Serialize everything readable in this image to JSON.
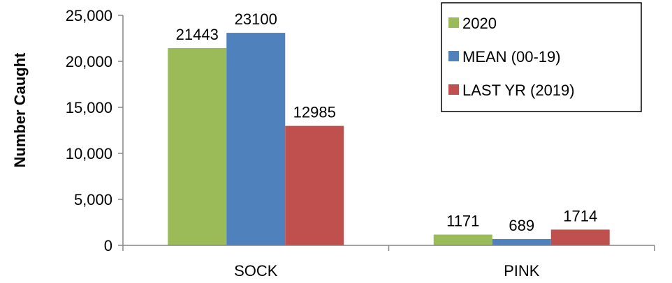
{
  "chart_data": {
    "type": "bar",
    "title": "",
    "xlabel": "",
    "ylabel": "Number Caught",
    "ylim": [
      0,
      25000
    ],
    "yticks": [
      {
        "value": 0,
        "label": "0"
      },
      {
        "value": 5000,
        "label": "5,000"
      },
      {
        "value": 10000,
        "label": "10,000"
      },
      {
        "value": 15000,
        "label": "15,000"
      },
      {
        "value": 20000,
        "label": "20,000"
      },
      {
        "value": 25000,
        "label": "25,000"
      }
    ],
    "categories": [
      "SOCK",
      "PINK"
    ],
    "series": [
      {
        "name": "2020",
        "color": "#9BBB59",
        "values": [
          21443,
          1171
        ],
        "labels": [
          "21443",
          "1171"
        ]
      },
      {
        "name": "MEAN (00-19)",
        "color": "#4F81BD",
        "values": [
          23100,
          689
        ],
        "labels": [
          "23100",
          "689"
        ]
      },
      {
        "name": "LAST YR (2019)",
        "color": "#C0504D",
        "values": [
          12985,
          1714
        ],
        "labels": [
          "12985",
          "1714"
        ]
      }
    ],
    "grid": false,
    "legend": "top-right"
  }
}
